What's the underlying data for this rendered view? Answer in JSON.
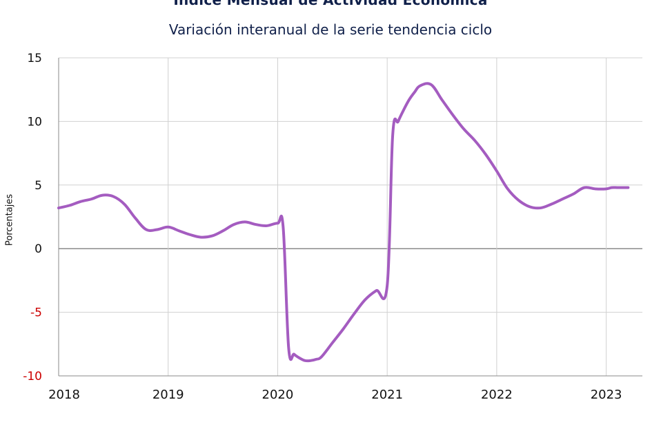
{
  "chart_data": {
    "type": "line",
    "title": "Índice Mensual de  Actividad Económica",
    "subtitle": "Variación interanual de la serie tendencia ciclo",
    "xlabel": "",
    "ylabel": "Porcentajes",
    "ylim": [
      -10,
      15
    ],
    "yticks": [
      "15",
      "10",
      "5",
      "0",
      "-5",
      "-10"
    ],
    "xlim": [
      2018,
      2023.33
    ],
    "xticks": [
      "2018",
      "2019",
      "2020",
      "2021",
      "2022",
      "2023"
    ],
    "grid": true,
    "colors": {
      "line": "#A45CC0",
      "negative_tick": "#cc0000",
      "text": "#10204a"
    },
    "series": [
      {
        "x": [
          2018.0,
          2018.1,
          2018.2,
          2018.3,
          2018.4,
          2018.5,
          2018.6,
          2018.7,
          2018.8,
          2018.9,
          2019.0,
          2019.1,
          2019.2,
          2019.3,
          2019.4,
          2019.5,
          2019.6,
          2019.7,
          2019.8,
          2019.9,
          2020.0,
          2020.05,
          2020.1,
          2020.15,
          2020.2,
          2020.25,
          2020.3,
          2020.35,
          2020.4,
          2020.5,
          2020.6,
          2020.7,
          2020.8,
          2020.9,
          2021.0,
          2021.05,
          2021.1,
          2021.15,
          2021.2,
          2021.25,
          2021.3,
          2021.4,
          2021.5,
          2021.6,
          2021.7,
          2021.8,
          2021.9,
          2022.0,
          2022.1,
          2022.2,
          2022.3,
          2022.4,
          2022.5,
          2022.6,
          2022.7,
          2022.8,
          2022.9,
          2023.0,
          2023.05,
          2023.1,
          2023.15,
          2023.2
        ],
        "y": [
          3.2,
          3.4,
          3.7,
          3.9,
          4.2,
          4.1,
          3.5,
          2.4,
          1.5,
          1.5,
          1.7,
          1.4,
          1.1,
          0.9,
          1.0,
          1.4,
          1.9,
          2.1,
          1.9,
          1.8,
          2.0,
          1.7,
          -7.8,
          -8.3,
          -8.6,
          -8.8,
          -8.8,
          -8.7,
          -8.5,
          -7.4,
          -6.3,
          -5.1,
          -4.0,
          -3.3,
          -2.9,
          8.9,
          10.0,
          10.9,
          11.7,
          12.3,
          12.8,
          12.9,
          11.7,
          10.5,
          9.4,
          8.5,
          7.4,
          6.1,
          4.7,
          3.8,
          3.3,
          3.2,
          3.5,
          3.9,
          4.3,
          4.8,
          4.7,
          4.7,
          4.8,
          4.8,
          4.8,
          4.8
        ]
      }
    ]
  }
}
